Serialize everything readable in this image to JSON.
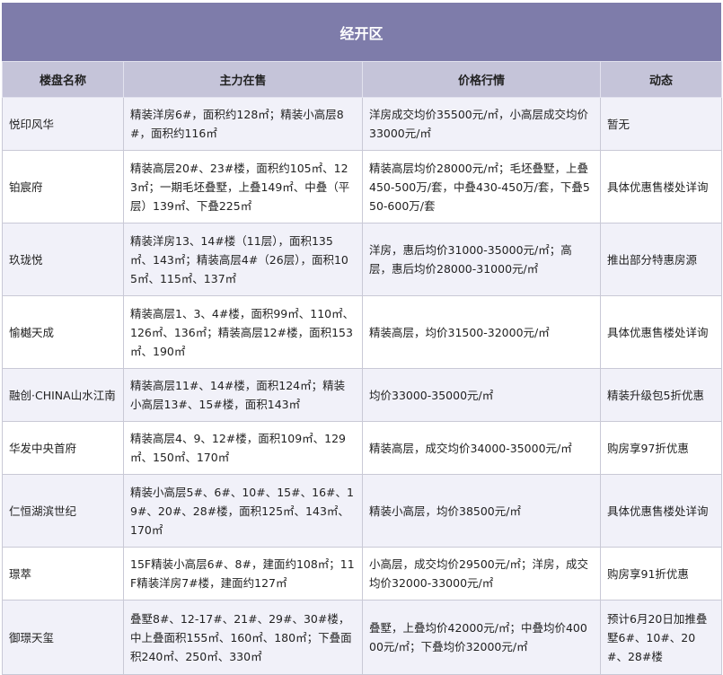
{
  "title": "经开区",
  "headers": [
    "楼盘名称",
    "主力在售",
    "价格行情",
    "动态"
  ],
  "rows": [
    {
      "name": "悦印风华",
      "sale": "精装洋房6#，面积约128㎡；精装小高层8#，面积约116㎡",
      "price": "洋房成交均价35500元/㎡，小高层成交均价33000元/㎡",
      "news": "暂无"
    },
    {
      "name": "铂宸府",
      "sale": "精装高层20#、23#楼，面积约105㎡、123㎡；一期毛坯叠墅，上叠149㎡、中叠（平层）139㎡、下叠225㎡",
      "price": "精装高层均价28000元/㎡；毛坯叠墅，上叠450-500万/套，中叠430-450万/套，下叠550-600万/套",
      "news": "具体优惠售楼处详询"
    },
    {
      "name": "玖珑悦",
      "sale": "精装洋房13、14#楼（11层），面积135㎡、143㎡；精装高层4#（26层），面积105㎡、115㎡、137㎡",
      "price": "洋房，惠后均价31000-35000元/㎡；高层，惠后均价28000-31000元/㎡",
      "news": "推出部分特惠房源"
    },
    {
      "name": "愉樾天成",
      "sale": "精装高层1、3、4#楼，面积99㎡、110㎡、126㎡、136㎡；精装高层12#楼，面积153㎡、190㎡",
      "price": "精装高层，均价31500-32000元/㎡",
      "news": "具体优惠售楼处详询"
    },
    {
      "name": "融创·CHINA山水江南",
      "sale": "精装高层11#、14#楼，面积124㎡；精装小高层13#、15#楼，面积143㎡",
      "price": "均价33000-35000元/㎡",
      "news": "精装升级包5折优惠"
    },
    {
      "name": "华发中央首府",
      "sale": "精装高层4、9、12#楼，面积109㎡、129㎡、150㎡、170㎡",
      "price": "精装高层，成交均价34000-35000元/㎡",
      "news": "购房享97折优惠"
    },
    {
      "name": "仁恒湖滨世纪",
      "sale": "精装小高层5#、6#、10#、15#、16#、19#、20#、28#楼，面积125㎡、143㎡、170㎡",
      "price": "精装小高层，均价38500元/㎡",
      "news": "具体优惠售楼处详询"
    },
    {
      "name": "璟萃",
      "sale": "15F精装小高层6#、8#，建面约108㎡；11F精装洋房7#楼，建面约127㎡",
      "price": "小高层，成交均价29500元/㎡；洋房，成交均价32000-33000元/㎡",
      "news": "购房享91折优惠"
    },
    {
      "name": "御璟天玺",
      "sale": "叠墅8#、12-17#、21#、29#、30#楼，中上叠面积155㎡、160㎡、180㎡；下叠面积240㎡、250㎡、330㎡",
      "price": "叠墅，上叠均价42000元/㎡；中叠均价40000元/㎡；下叠均价32000元/㎡",
      "news": "预计6月20日加推叠墅6#、10#、20#、28#楼"
    }
  ]
}
